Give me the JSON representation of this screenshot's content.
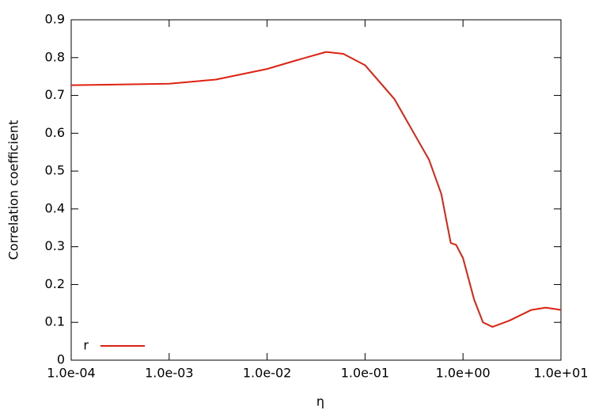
{
  "chart_data": {
    "type": "line",
    "x_label": "η",
    "y_label": "Correlation coefficient",
    "x": [
      0.0001,
      0.001,
      0.003,
      0.01,
      0.02,
      0.04,
      0.06,
      0.1,
      0.2,
      0.3,
      0.45,
      0.6,
      0.7,
      0.75,
      0.85,
      1.0,
      1.3,
      1.6,
      2.0,
      3.0,
      5.0,
      7.0,
      10.0
    ],
    "series": [
      {
        "name": "r",
        "color": "#dd2211",
        "values": [
          0.727,
          0.731,
          0.742,
          0.77,
          0.793,
          0.815,
          0.81,
          0.78,
          0.69,
          0.61,
          0.53,
          0.44,
          0.35,
          0.31,
          0.305,
          0.27,
          0.16,
          0.1,
          0.088,
          0.105,
          0.133,
          0.139,
          0.133
        ]
      }
    ],
    "x_log": true,
    "xlim": [
      0.0001,
      10
    ],
    "xticks": [
      {
        "value": 0.0001,
        "label": "1.0e-04"
      },
      {
        "value": 0.001,
        "label": "1.0e-03"
      },
      {
        "value": 0.01,
        "label": "1.0e-02"
      },
      {
        "value": 0.1,
        "label": "1.0e-01"
      },
      {
        "value": 1,
        "label": "1.0e+00"
      },
      {
        "value": 10,
        "label": "1.0e+01"
      }
    ],
    "ylim": [
      0,
      0.9
    ],
    "yticks": [
      0,
      0.1,
      0.2,
      0.3,
      0.4,
      0.5,
      0.6,
      0.7,
      0.8,
      0.9
    ],
    "legend": "lower left"
  }
}
